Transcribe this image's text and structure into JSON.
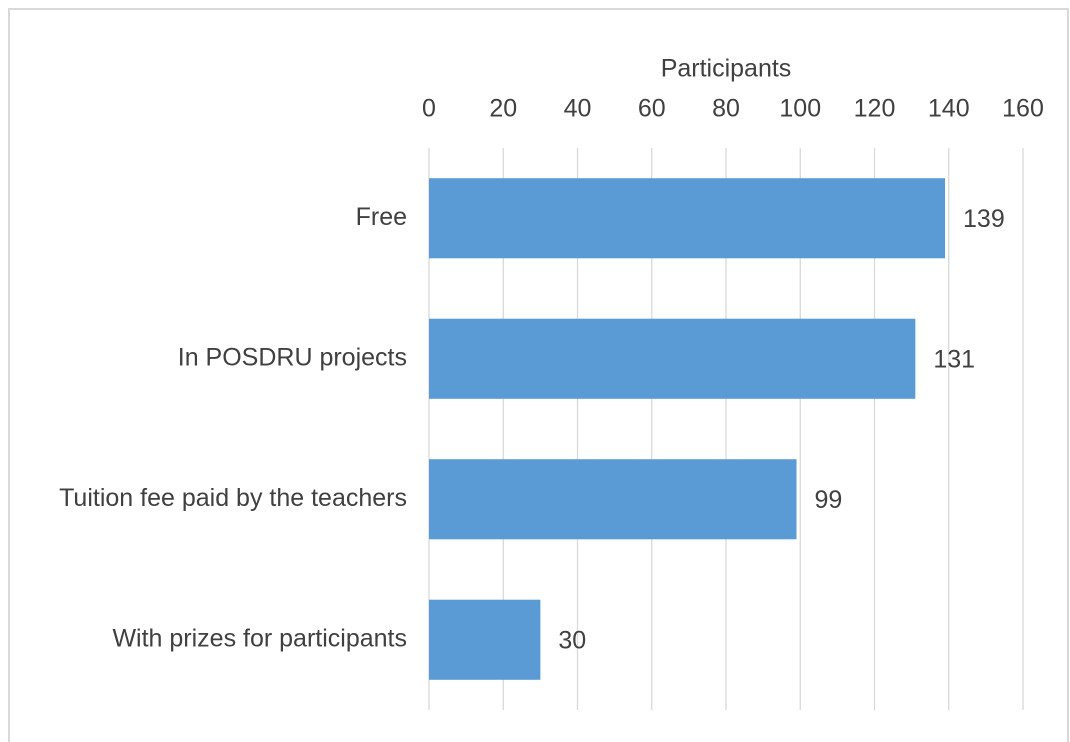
{
  "chart_data": {
    "type": "bar",
    "orientation": "horizontal",
    "x_label": "Participants",
    "categories": [
      "Free",
      "In POSDRU projects",
      "Tuition fee paid by the teachers",
      "With prizes for participants"
    ],
    "values": [
      139,
      131,
      99,
      30
    ],
    "color": "#5b9bd5",
    "xlim": [
      0,
      160
    ],
    "xticks": [
      0,
      20,
      40,
      60,
      80,
      100,
      120,
      140,
      160
    ],
    "grid": true,
    "xaxis_position": "top"
  }
}
